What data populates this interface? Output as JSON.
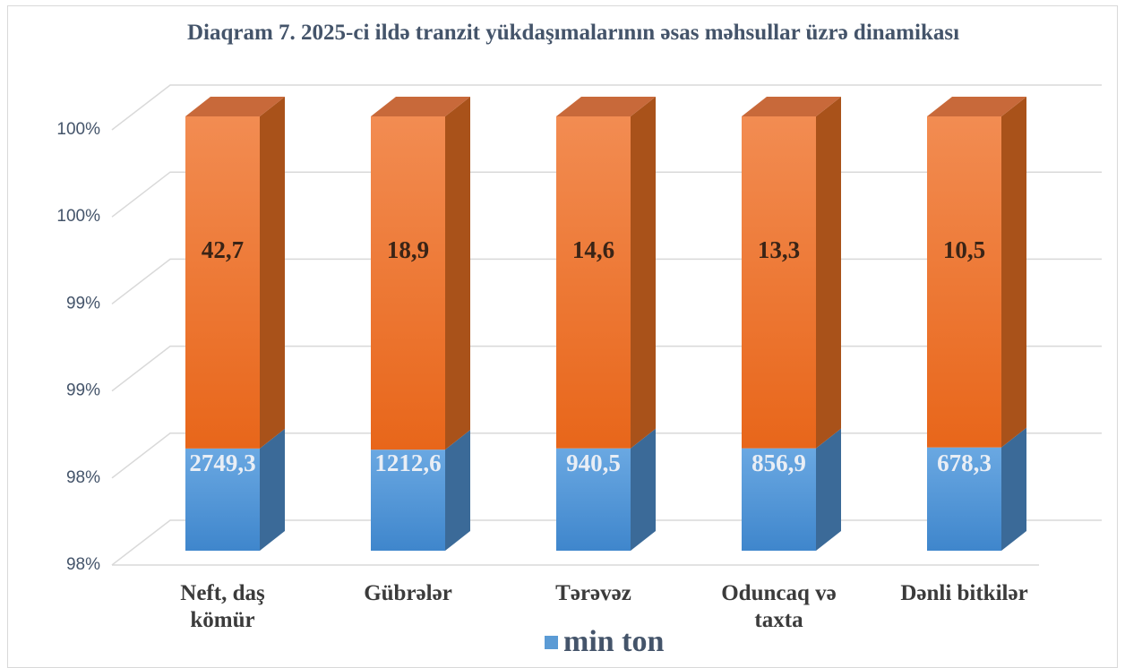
{
  "chart_data": {
    "type": "bar3d_stacked_percent",
    "title": "Diaqram 7. 2025-ci ildə tranzit yükdaşımalarının əsas məhsullar üzrə dinamikası",
    "categories": [
      "Neft, daş kömür",
      "Gübrələr",
      "Tərəvəz",
      "Oduncaq və taxta",
      "Dənli bitkilər"
    ],
    "series": [
      {
        "name": "min ton",
        "color": "#5b9bd5",
        "values": [
          2749.3,
          1212.6,
          940.5,
          856.9,
          678.3
        ],
        "value_labels": [
          "2749,3",
          "1212,6",
          "940,5",
          "856,9",
          "678,3"
        ]
      },
      {
        "color": "#f07b2c",
        "values": [
          42.7,
          18.9,
          14.6,
          13.3,
          10.5
        ],
        "value_labels": [
          "42,7",
          "18,9",
          "14,6",
          "13,3",
          "10,5"
        ]
      }
    ],
    "ylim": [
      98,
      100
    ],
    "yticks": [
      {
        "value": 98,
        "label": "98%"
      },
      {
        "value": 98.4,
        "label": "98%"
      },
      {
        "value": 98.8,
        "label": "99%"
      },
      {
        "value": 99.2,
        "label": "99%"
      },
      {
        "value": 99.6,
        "label": "100%"
      },
      {
        "value": 100,
        "label": "100%"
      }
    ],
    "grid": true,
    "legend": "bottom"
  }
}
